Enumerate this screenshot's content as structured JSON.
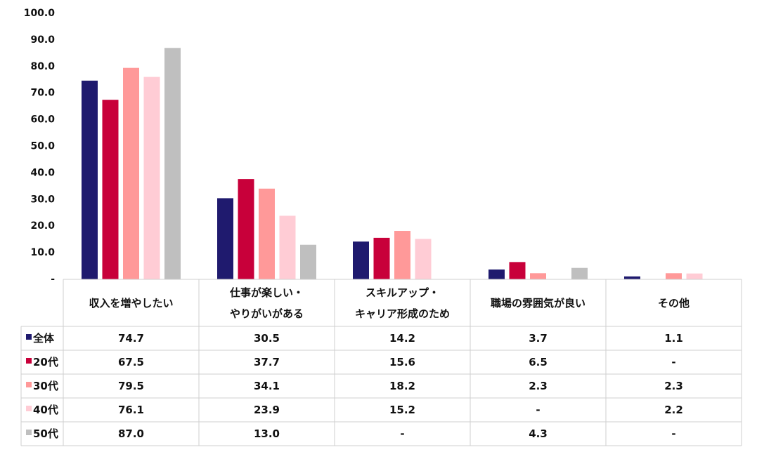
{
  "chart_data": {
    "type": "bar",
    "categories": [
      "収入を増やしたい",
      "仕事が楽しい・\nやりがいがある",
      "スキルアップ・\nキャリア形成のため",
      "職場の雰囲気が良い",
      "その他"
    ],
    "series": [
      {
        "name": "全体",
        "color": "#1f1a6e",
        "values": [
          74.7,
          30.5,
          14.2,
          3.7,
          1.1
        ],
        "value_labels": [
          "74.7",
          "30.5",
          "14.2",
          "3.7",
          "1.1"
        ]
      },
      {
        "name": "20代",
        "color": "#c8003a",
        "values": [
          67.5,
          37.7,
          15.6,
          6.5,
          null
        ],
        "value_labels": [
          "67.5",
          "37.7",
          "15.6",
          "6.5",
          "-"
        ]
      },
      {
        "name": "30代",
        "color": "#ff9999",
        "values": [
          79.5,
          34.1,
          18.2,
          2.3,
          2.3
        ],
        "value_labels": [
          "79.5",
          "34.1",
          "18.2",
          "2.3",
          "2.3"
        ]
      },
      {
        "name": "40代",
        "color": "#ffccd5",
        "values": [
          76.1,
          23.9,
          15.2,
          null,
          2.2
        ],
        "value_labels": [
          "76.1",
          "23.9",
          "15.2",
          "-",
          "2.2"
        ]
      },
      {
        "name": "50代",
        "color": "#bfbfbf",
        "values": [
          87.0,
          13.0,
          null,
          4.3,
          null
        ],
        "value_labels": [
          "87.0",
          "13.0",
          "-",
          "4.3",
          "-"
        ]
      }
    ],
    "ylim": [
      0,
      100
    ],
    "yticks": [
      {
        "value": 0,
        "label": "-"
      },
      {
        "value": 10,
        "label": "10.0"
      },
      {
        "value": 20,
        "label": "20.0"
      },
      {
        "value": 30,
        "label": "30.0"
      },
      {
        "value": 40,
        "label": "40.0"
      },
      {
        "value": 50,
        "label": "50.0"
      },
      {
        "value": 60,
        "label": "60.0"
      },
      {
        "value": 70,
        "label": "70.0"
      },
      {
        "value": 80,
        "label": "80.0"
      },
      {
        "value": 90,
        "label": "90.0"
      },
      {
        "value": 100,
        "label": "100.0"
      }
    ],
    "grid": false
  }
}
